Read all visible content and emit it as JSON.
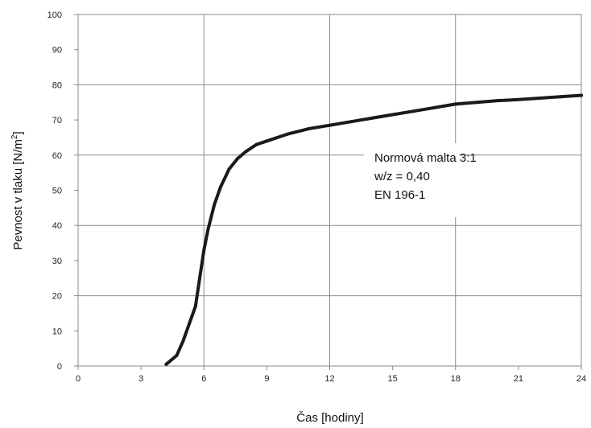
{
  "chart_data": {
    "type": "line",
    "xlabel": "Čas [hodiny]",
    "ylabel_main": "Pevnost v tlaku [N/m",
    "ylabel_sup": "2",
    "ylabel_close": "]",
    "xlim": [
      0,
      24
    ],
    "ylim": [
      0,
      100
    ],
    "xticks": [
      0,
      3,
      6,
      9,
      12,
      15,
      18,
      21,
      24
    ],
    "yticks": [
      0,
      10,
      20,
      30,
      40,
      50,
      60,
      70,
      80,
      90,
      100
    ],
    "xtick_labels": [
      "0",
      "3",
      "6",
      "9",
      "12",
      "15",
      "18",
      "21",
      "24"
    ],
    "ytick_labels": [
      "0",
      "10",
      "20",
      "30",
      "40",
      "50",
      "60",
      "70",
      "80",
      "90",
      "100"
    ],
    "major_gridlines_x": [
      6,
      12,
      18
    ],
    "major_gridlines_y": [
      20,
      40,
      60,
      80
    ],
    "annotation": [
      "Normová malta 3:1",
      "w/z = 0,40",
      "EN 196-1"
    ],
    "series": [
      {
        "color": "#1a1a1a",
        "points": [
          [
            4.2,
            0.5
          ],
          [
            4.7,
            3
          ],
          [
            5.0,
            7
          ],
          [
            5.3,
            12
          ],
          [
            5.6,
            17
          ],
          [
            5.8,
            25
          ],
          [
            6.0,
            33
          ],
          [
            6.2,
            39
          ],
          [
            6.5,
            46
          ],
          [
            6.8,
            51
          ],
          [
            7.2,
            56
          ],
          [
            7.6,
            59
          ],
          [
            8.0,
            61
          ],
          [
            8.5,
            63
          ],
          [
            9.0,
            64
          ],
          [
            10.0,
            66
          ],
          [
            11.0,
            67.5
          ],
          [
            12.0,
            68.5
          ],
          [
            13.0,
            69.5
          ],
          [
            14.0,
            70.5
          ],
          [
            15.0,
            71.5
          ],
          [
            16.0,
            72.5
          ],
          [
            17.0,
            73.5
          ],
          [
            18.0,
            74.5
          ],
          [
            19.0,
            75
          ],
          [
            20.0,
            75.5
          ],
          [
            21.0,
            75.8
          ],
          [
            22.0,
            76.2
          ],
          [
            23.0,
            76.6
          ],
          [
            24.0,
            77
          ]
        ]
      }
    ]
  }
}
